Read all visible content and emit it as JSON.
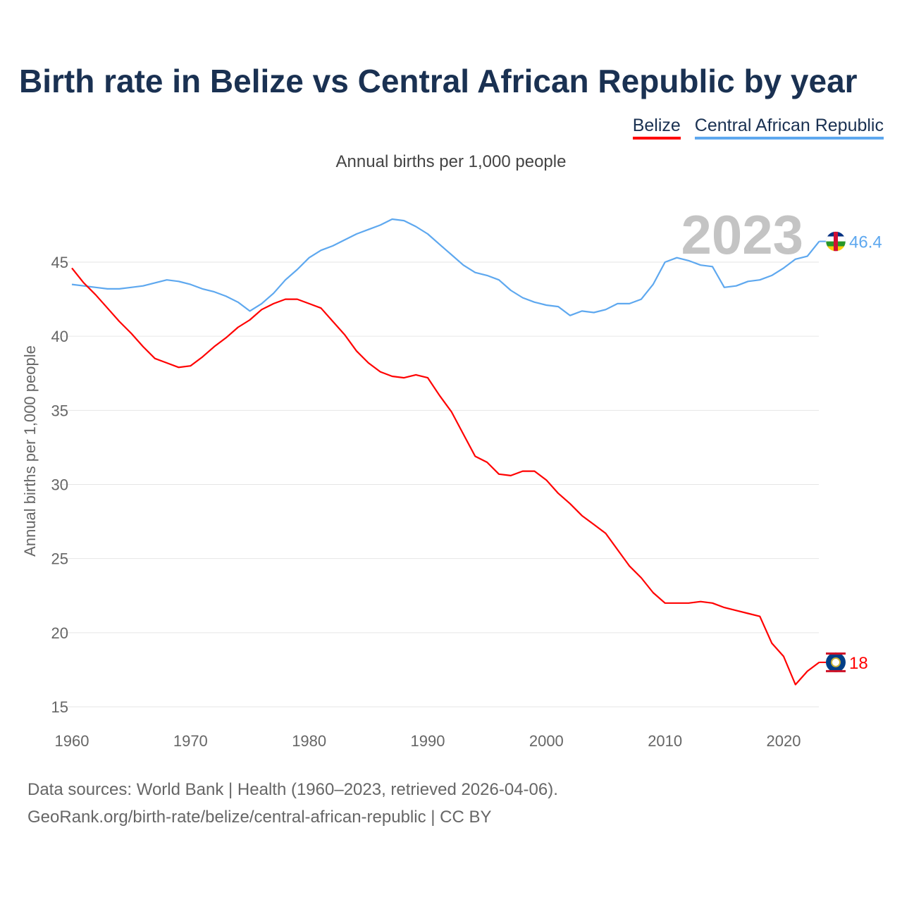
{
  "title": "Birth rate in Belize vs Central African Republic by year",
  "subtitle": "Annual births per 1,000 people",
  "year_watermark": "2023",
  "footer": {
    "line1": "Data sources: World Bank | Health (1960–2023, retrieved 2026-04-06).",
    "line2": "GeoRank.org/birth-rate/belize/central-african-republic | CC BY"
  },
  "chart_data": {
    "type": "line",
    "title": "Birth rate in Belize vs Central African Republic by year",
    "xlabel": "",
    "ylabel": "Annual births per 1,000 people",
    "xlim": [
      1960,
      2023
    ],
    "ylim": [
      15,
      48
    ],
    "xticks": [
      "1960",
      "1970",
      "1980",
      "1990",
      "2000",
      "2010",
      "2020"
    ],
    "yticks": [
      "15",
      "20",
      "25",
      "30",
      "35",
      "40",
      "45"
    ],
    "grid": true,
    "legend_placement": "top-right",
    "x_start": 1960,
    "series": [
      {
        "name": "Belize",
        "color": "#ff0000",
        "end_label": "18",
        "values": [
          44.6,
          43.6,
          42.8,
          41.9,
          41.0,
          40.2,
          39.3,
          38.5,
          38.2,
          37.9,
          38.0,
          38.6,
          39.3,
          39.9,
          40.6,
          41.1,
          41.8,
          42.2,
          42.5,
          42.5,
          42.2,
          41.9,
          41.0,
          40.1,
          39.0,
          38.2,
          37.6,
          37.3,
          37.2,
          37.4,
          37.2,
          36.0,
          34.9,
          33.4,
          31.9,
          31.5,
          30.7,
          30.6,
          30.9,
          30.9,
          30.3,
          29.4,
          28.7,
          27.9,
          27.3,
          26.7,
          25.6,
          24.5,
          23.7,
          22.7,
          22.0,
          22.0,
          22.0,
          22.1,
          22.0,
          21.7,
          21.5,
          21.3,
          21.1,
          19.3,
          18.4,
          16.5,
          17.4,
          18.0
        ]
      },
      {
        "name": "Central African Republic",
        "color": "#5ea8ef",
        "end_label": "46.4",
        "values": [
          43.5,
          43.4,
          43.3,
          43.2,
          43.2,
          43.3,
          43.4,
          43.6,
          43.8,
          43.7,
          43.5,
          43.2,
          43.0,
          42.7,
          42.3,
          41.7,
          42.2,
          42.9,
          43.8,
          44.5,
          45.3,
          45.8,
          46.1,
          46.5,
          46.9,
          47.2,
          47.5,
          47.9,
          47.8,
          47.4,
          46.9,
          46.2,
          45.5,
          44.8,
          44.3,
          44.1,
          43.8,
          43.1,
          42.6,
          42.3,
          42.1,
          42.0,
          41.4,
          41.7,
          41.6,
          41.8,
          42.2,
          42.2,
          42.5,
          43.5,
          45.0,
          45.3,
          45.1,
          44.8,
          44.7,
          43.3,
          43.4,
          43.7,
          43.8,
          44.1,
          44.6,
          45.2,
          45.4,
          46.4
        ]
      }
    ]
  }
}
